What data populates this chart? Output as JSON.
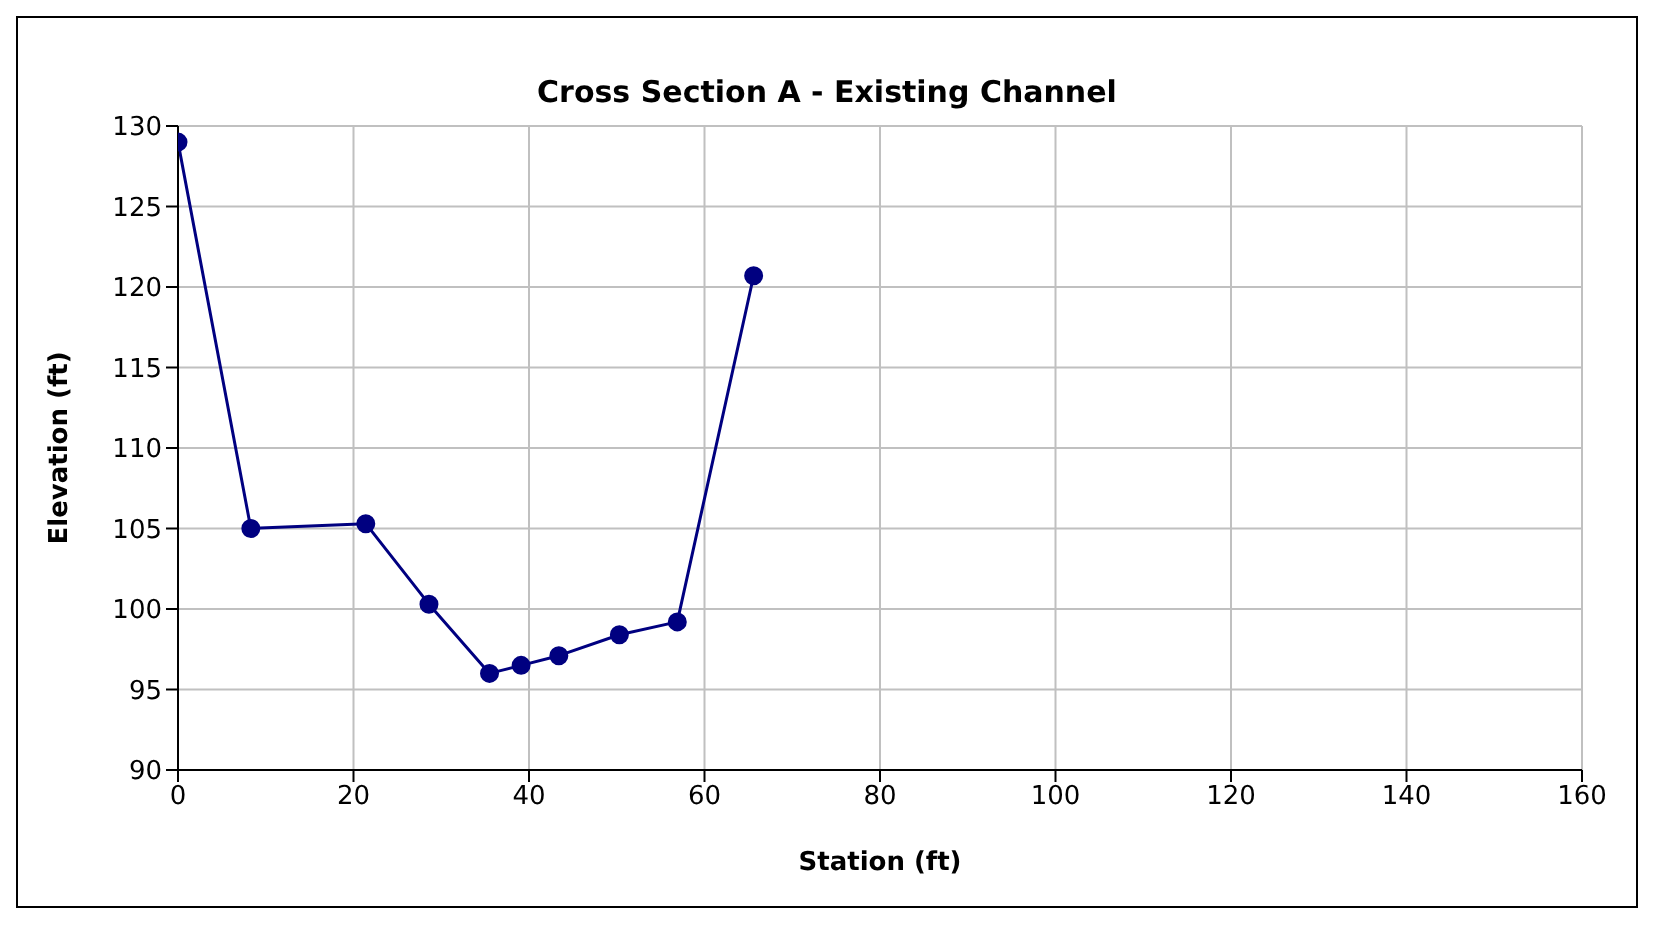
{
  "chart_data": {
    "type": "line",
    "title": "Cross Section A - Existing Channel",
    "xlabel": "Station (ft)",
    "ylabel": "Elevation (ft)",
    "x": [
      0,
      8.3,
      21.4,
      28.6,
      35.5,
      39.1,
      43.4,
      50.3,
      56.9,
      65.6
    ],
    "series": [
      {
        "color": "#000080",
        "values": [
          129,
          105,
          105.3,
          100.3,
          96,
          96.5,
          97.1,
          98.4,
          99.2,
          120.7
        ]
      }
    ],
    "xlim": [
      0,
      160
    ],
    "xticks": [
      0,
      20,
      40,
      60,
      80,
      100,
      120,
      140,
      160
    ],
    "ylim": [
      90,
      130
    ],
    "yticks": [
      90,
      95,
      100,
      105,
      110,
      115,
      120,
      125,
      130
    ],
    "grid": true,
    "legend": false,
    "marker": "circle",
    "line_style": "solid"
  }
}
